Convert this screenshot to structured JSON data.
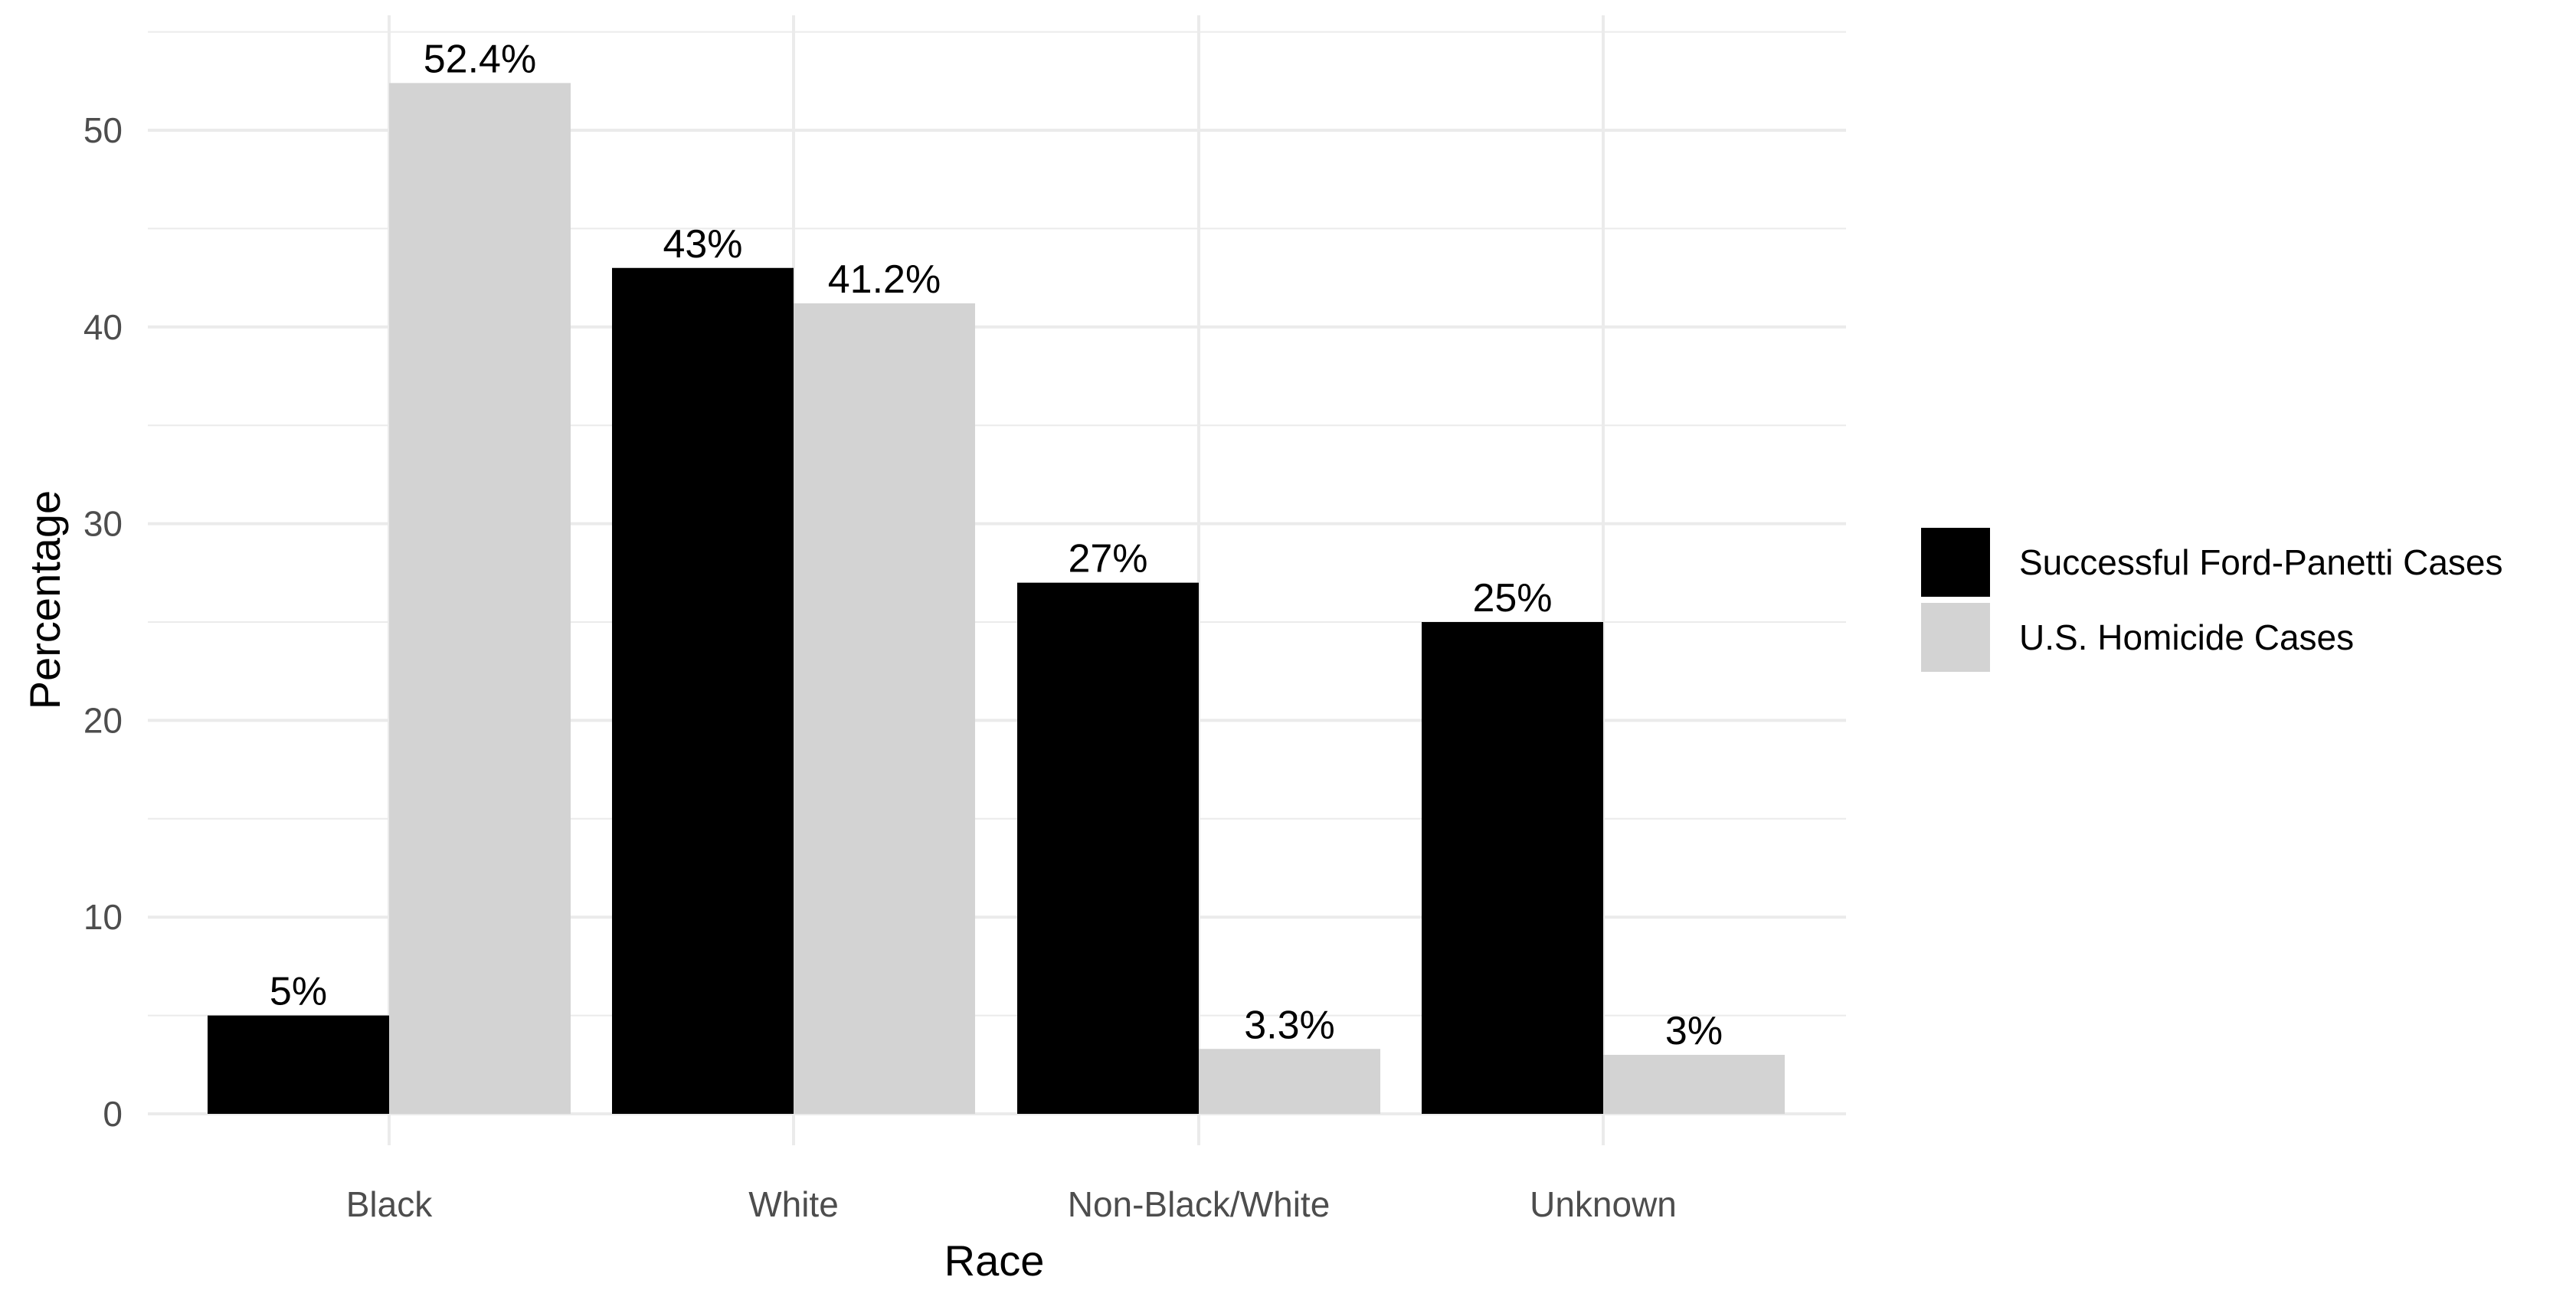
{
  "chart_data": {
    "type": "bar",
    "title": "",
    "xlabel": "Race",
    "ylabel": "Percentage",
    "categories": [
      "Black",
      "White",
      "Non-Black/White",
      "Unknown"
    ],
    "series": [
      {
        "name": "Successful Ford-Panetti Cases",
        "color": "#000000",
        "values": [
          5,
          43,
          27,
          25
        ],
        "labels": [
          "5%",
          "43%",
          "27%",
          "25%"
        ]
      },
      {
        "name": "U.S. Homicide Cases",
        "color": "#d3d3d3",
        "values": [
          52.4,
          41.2,
          3.3,
          3
        ],
        "labels": [
          "52.4%",
          "41.2%",
          "3.3%",
          "3%"
        ]
      }
    ],
    "ylim": [
      0,
      55
    ],
    "yticks": [
      0,
      10,
      20,
      30,
      40,
      50
    ],
    "grid": true,
    "legend_position": "right"
  }
}
